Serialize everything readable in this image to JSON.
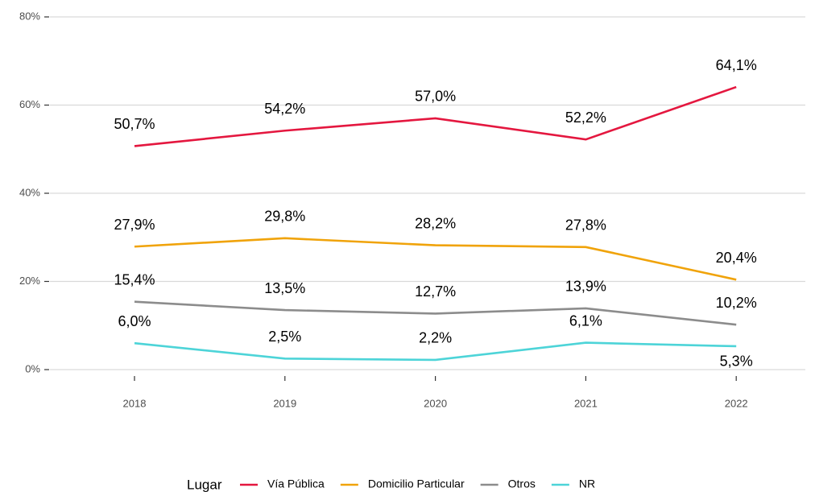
{
  "chart_data": {
    "type": "line",
    "categories": [
      "2018",
      "2019",
      "2020",
      "2021",
      "2022"
    ],
    "series": [
      {
        "name": "Vía Pública",
        "color": "#e4173f",
        "values": [
          50.7,
          54.2,
          57.0,
          52.2,
          64.1
        ],
        "value_labels": [
          "50,7%",
          "54,2%",
          "57,0%",
          "52,2%",
          "64,1%"
        ]
      },
      {
        "name": "Domicilio Particular",
        "color": "#f0a30a",
        "values": [
          27.9,
          29.8,
          28.2,
          27.8,
          20.4
        ],
        "value_labels": [
          "27,9%",
          "29,8%",
          "28,2%",
          "27,8%",
          "20,4%"
        ]
      },
      {
        "name": "Otros",
        "color": "#8c8c8c",
        "values": [
          15.4,
          13.5,
          12.7,
          13.9,
          10.2
        ],
        "value_labels": [
          "15,4%",
          "13,5%",
          "12,7%",
          "13,9%",
          "10,2%"
        ]
      },
      {
        "name": "NR",
        "color": "#4dd4d8",
        "values": [
          6.0,
          2.5,
          2.2,
          6.1,
          5.3
        ],
        "value_labels": [
          "6,0%",
          "2,5%",
          "2,2%",
          "6,1%",
          "5,3%"
        ]
      }
    ],
    "ylim": [
      0,
      80
    ],
    "yticks": [
      {
        "value": 0,
        "label": "0%"
      },
      {
        "value": 20,
        "label": "20%"
      },
      {
        "value": 40,
        "label": "40%"
      },
      {
        "value": 60,
        "label": "60%"
      },
      {
        "value": 80,
        "label": "80%"
      }
    ],
    "grid": true,
    "legend_title": "Lugar",
    "legend_position": "bottom"
  }
}
